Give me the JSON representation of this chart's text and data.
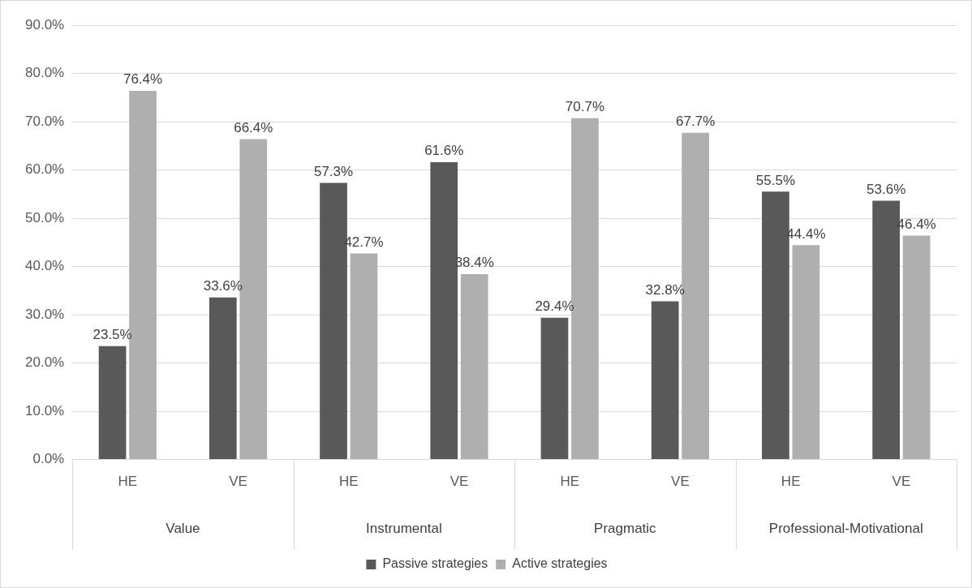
{
  "chart_data": {
    "type": "bar",
    "categories": [
      "HE",
      "VE",
      "HE",
      "VE",
      "HE",
      "VE",
      "HE",
      "VE"
    ],
    "annotations": [
      "Value",
      "Instrumental",
      "Pragmatic",
      "Professional-Motivational"
    ],
    "series": [
      {
        "name": "Passive strategies",
        "color": "#595959",
        "values": [
          23.5,
          33.6,
          57.3,
          61.6,
          29.4,
          32.8,
          55.5,
          53.6
        ],
        "value_labels": [
          "23.5%",
          "33.6%",
          "57.3%",
          "61.6%",
          "29.4%",
          "32.8%",
          "55.5%",
          "53.6%"
        ]
      },
      {
        "name": "Active strategies",
        "color": "#afafaf",
        "values": [
          76.4,
          66.4,
          42.7,
          38.4,
          70.7,
          67.7,
          44.4,
          46.4
        ],
        "value_labels": [
          "76.4%",
          "66.4%",
          "42.7%",
          "38.4%",
          "70.7%",
          "67.7%",
          "44.4%",
          "46.4%"
        ]
      }
    ],
    "ylim": [
      0,
      90
    ],
    "yticks": [
      {
        "value": 0,
        "label": "0.0%"
      },
      {
        "value": 10,
        "label": "10.0%"
      },
      {
        "value": 20,
        "label": "20.0%"
      },
      {
        "value": 30,
        "label": "30.0%"
      },
      {
        "value": 40,
        "label": "40.0%"
      },
      {
        "value": 50,
        "label": "50.0%"
      },
      {
        "value": 60,
        "label": "60.0%"
      },
      {
        "value": 70,
        "label": "70.0%"
      },
      {
        "value": 80,
        "label": "80.0%"
      },
      {
        "value": 90,
        "label": "90.0%"
      }
    ],
    "grid": "y",
    "legend": "bottom"
  }
}
